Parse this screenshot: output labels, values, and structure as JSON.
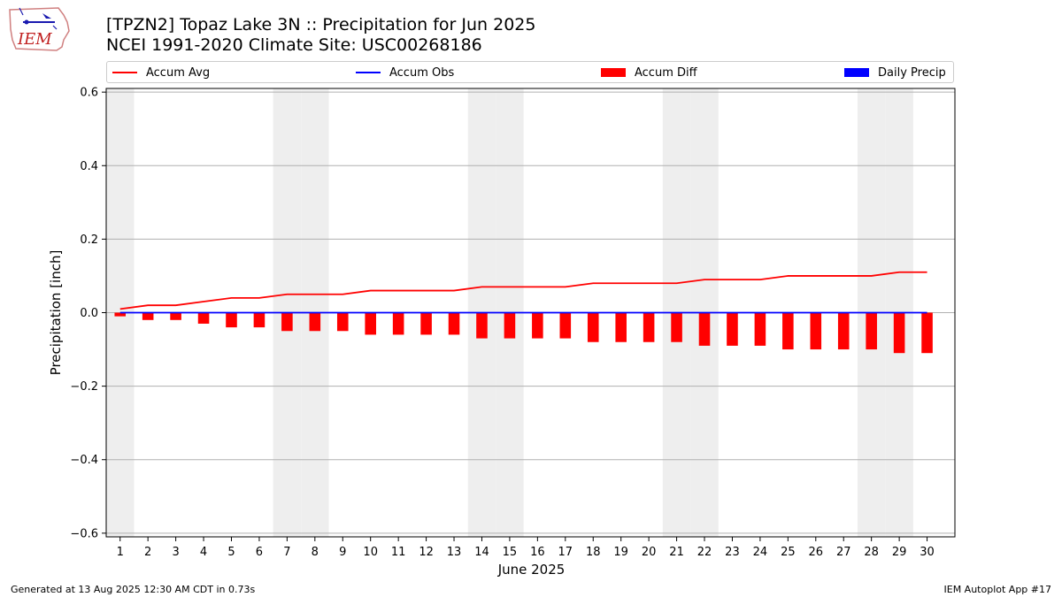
{
  "header": {
    "logo_text": "IEM",
    "title_line1": "[TPZN2] Topaz Lake 3N :: Precipitation for Jun 2025",
    "title_line2": "NCEI 1991-2020 Climate Site: USC00268186"
  },
  "legend": {
    "items": [
      {
        "label": "Accum Avg",
        "kind": "line",
        "color": "#ff0000"
      },
      {
        "label": "Accum Obs",
        "kind": "line",
        "color": "#0000ff"
      },
      {
        "label": "Accum Diff",
        "kind": "bar",
        "color": "#ff0000"
      },
      {
        "label": "Daily Precip",
        "kind": "bar",
        "color": "#0000ff"
      }
    ]
  },
  "chart_data": {
    "type": "bar",
    "title": "[TPZN2] Topaz Lake 3N :: Precipitation for Jun 2025",
    "subtitle": "NCEI 1991-2020 Climate Site: USC00268186",
    "xlabel": "June 2025",
    "ylabel": "Precipitation [inch]",
    "ylim": [
      -0.61,
      0.61
    ],
    "yticks": [
      -0.6,
      -0.4,
      -0.2,
      0.0,
      0.2,
      0.4,
      0.6
    ],
    "ytick_labels": [
      "−0.6",
      "−0.4",
      "−0.2",
      "0.0",
      "0.2",
      "0.4",
      "0.6"
    ],
    "grid": "horizontal",
    "legend_placement": "top",
    "weekend_shading_days": [
      1,
      7,
      8,
      14,
      15,
      21,
      22,
      28,
      29
    ],
    "x": [
      1,
      2,
      3,
      4,
      5,
      6,
      7,
      8,
      9,
      10,
      11,
      12,
      13,
      14,
      15,
      16,
      17,
      18,
      19,
      20,
      21,
      22,
      23,
      24,
      25,
      26,
      27,
      28,
      29,
      30
    ],
    "series": [
      {
        "name": "Accum Avg",
        "type": "line",
        "color": "#ff0000",
        "values": [
          0.01,
          0.02,
          0.02,
          0.03,
          0.04,
          0.04,
          0.05,
          0.05,
          0.05,
          0.06,
          0.06,
          0.06,
          0.06,
          0.07,
          0.07,
          0.07,
          0.07,
          0.08,
          0.08,
          0.08,
          0.08,
          0.09,
          0.09,
          0.09,
          0.1,
          0.1,
          0.1,
          0.1,
          0.11,
          0.11
        ]
      },
      {
        "name": "Accum Obs",
        "type": "line",
        "color": "#0000ff",
        "values": [
          0,
          0,
          0,
          0,
          0,
          0,
          0,
          0,
          0,
          0,
          0,
          0,
          0,
          0,
          0,
          0,
          0,
          0,
          0,
          0,
          0,
          0,
          0,
          0,
          0,
          0,
          0,
          0,
          0,
          0
        ]
      },
      {
        "name": "Accum Diff",
        "type": "bar",
        "color": "#ff0000",
        "values": [
          -0.01,
          -0.02,
          -0.02,
          -0.03,
          -0.04,
          -0.04,
          -0.05,
          -0.05,
          -0.05,
          -0.06,
          -0.06,
          -0.06,
          -0.06,
          -0.07,
          -0.07,
          -0.07,
          -0.07,
          -0.08,
          -0.08,
          -0.08,
          -0.08,
          -0.09,
          -0.09,
          -0.09,
          -0.1,
          -0.1,
          -0.1,
          -0.1,
          -0.11,
          -0.11
        ]
      },
      {
        "name": "Daily Precip",
        "type": "bar",
        "color": "#0000ff",
        "values": [
          0,
          0,
          0,
          0,
          0,
          0,
          0,
          0,
          0,
          0,
          0,
          0,
          0,
          0,
          0,
          0,
          0,
          0,
          0,
          0,
          0,
          0,
          0,
          0,
          0,
          0,
          0,
          0,
          0,
          0
        ]
      }
    ]
  },
  "footer": {
    "left": "Generated at 13 Aug 2025 12:30 AM CDT in 0.73s",
    "right": "IEM Autoplot App #17"
  }
}
